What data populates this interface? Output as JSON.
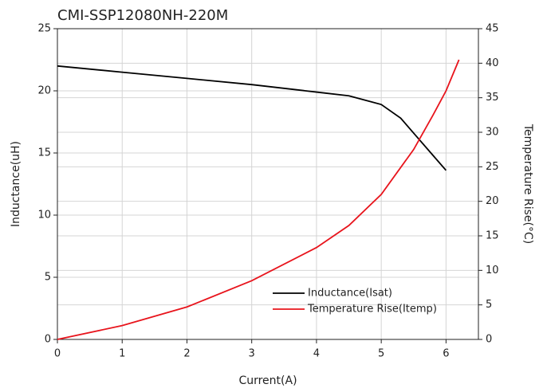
{
  "chart_data": {
    "type": "line",
    "title": "CMI-SSP12080NH-220M",
    "x_label": "Current(A)",
    "y_label": "Inductance(uH)",
    "y2_label": "Temperature Rise(°C)",
    "xlim": [
      0,
      6.5
    ],
    "xticks": [
      0,
      1,
      2,
      3,
      4,
      5,
      6
    ],
    "ylim": [
      0,
      25
    ],
    "yticks": [
      0,
      5,
      10,
      15,
      20,
      25
    ],
    "y2lim": [
      0,
      45
    ],
    "y2ticks": [
      0,
      5,
      10,
      15,
      20,
      25,
      30,
      35,
      40,
      45
    ],
    "grid": true,
    "legend": "lower right",
    "series": [
      {
        "name": "Inductance(Isat)",
        "color": "#000000",
        "axis": "y",
        "x": [
          0,
          1,
          2,
          3,
          4,
          4.5,
          5,
          5.3,
          5.5,
          5.8,
          6
        ],
        "values": [
          22,
          21.5,
          21.0,
          20.5,
          19.9,
          19.6,
          18.9,
          17.8,
          16.6,
          14.8,
          13.6
        ]
      },
      {
        "name": "Temperature Rise(Itemp)",
        "color": "#e8141c",
        "axis": "y2",
        "x": [
          0,
          1,
          2,
          3,
          4,
          4.5,
          5,
          5.5,
          5.8,
          6,
          6.2
        ],
        "values": [
          0,
          2,
          4.7,
          8.5,
          13.3,
          16.5,
          21,
          27.5,
          32.5,
          36,
          40.5
        ]
      }
    ]
  }
}
